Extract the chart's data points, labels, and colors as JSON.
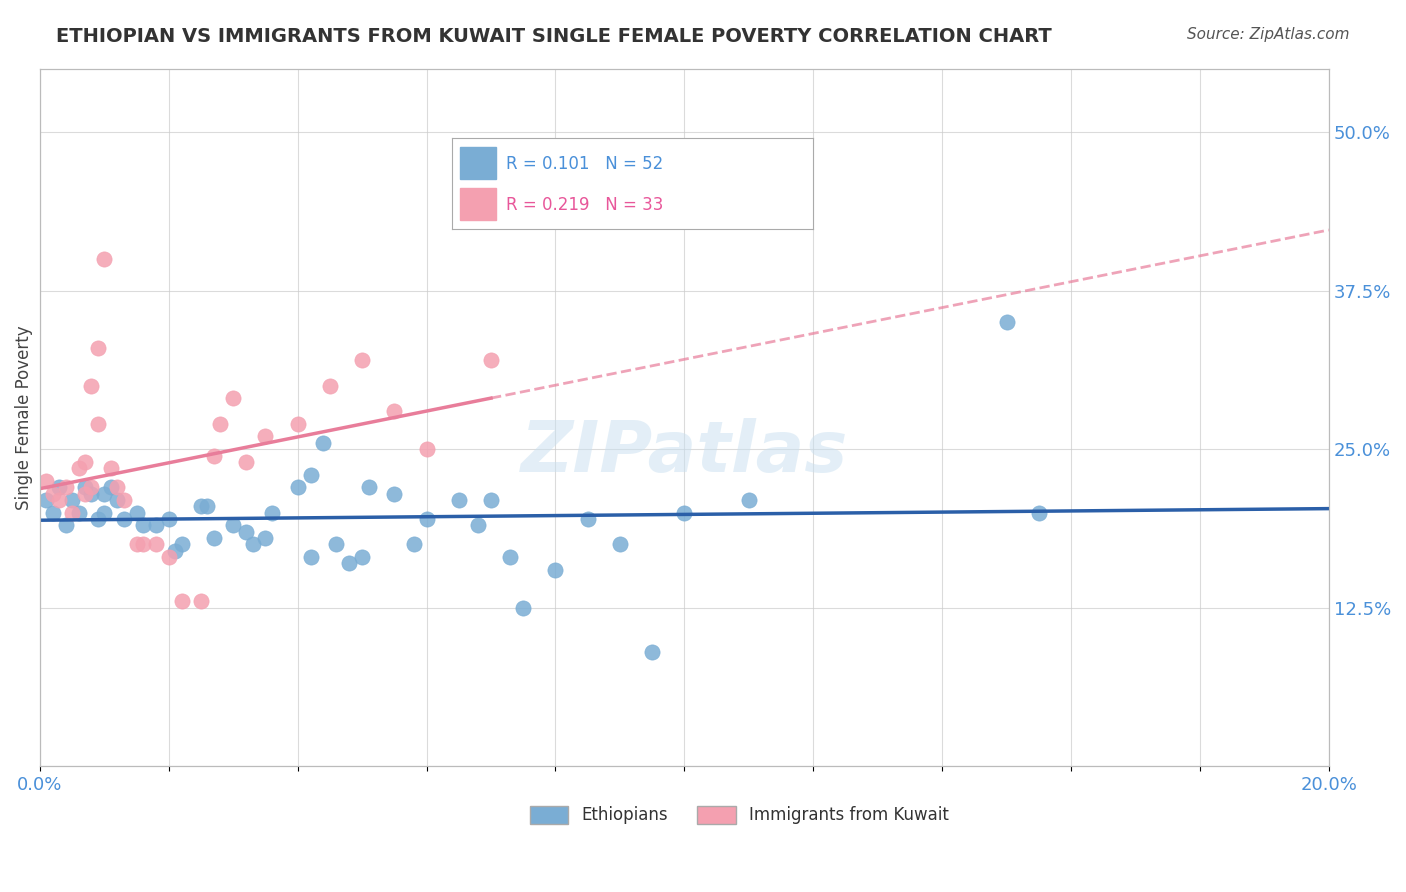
{
  "title": "ETHIOPIAN VS IMMIGRANTS FROM KUWAIT SINGLE FEMALE POVERTY CORRELATION CHART",
  "source": "Source: ZipAtlas.com",
  "ylabel": "Single Female Poverty",
  "xlabel": "",
  "xlim": [
    0.0,
    0.2
  ],
  "ylim": [
    0.0,
    0.55
  ],
  "yticks": [
    0.0,
    0.125,
    0.25,
    0.375,
    0.5
  ],
  "ytick_labels": [
    "",
    "12.5%",
    "25.0%",
    "37.5%",
    "50.0%"
  ],
  "xticks": [
    0.0,
    0.02,
    0.04,
    0.06,
    0.08,
    0.1,
    0.12,
    0.14,
    0.16,
    0.18,
    0.2
  ],
  "xtick_labels": [
    "0.0%",
    "",
    "",
    "",
    "",
    "",
    "",
    "",
    "",
    "",
    "20.0%"
  ],
  "blue_R": 0.101,
  "blue_N": 52,
  "pink_R": 0.219,
  "pink_N": 33,
  "blue_color": "#7aadd4",
  "pink_color": "#f4a0b0",
  "blue_line_color": "#2b5fa8",
  "pink_line_color": "#e87d9a",
  "blue_scatter": [
    [
      0.001,
      0.21
    ],
    [
      0.002,
      0.2
    ],
    [
      0.003,
      0.22
    ],
    [
      0.004,
      0.19
    ],
    [
      0.005,
      0.21
    ],
    [
      0.006,
      0.2
    ],
    [
      0.007,
      0.22
    ],
    [
      0.008,
      0.215
    ],
    [
      0.009,
      0.195
    ],
    [
      0.01,
      0.2
    ],
    [
      0.01,
      0.215
    ],
    [
      0.011,
      0.22
    ],
    [
      0.012,
      0.21
    ],
    [
      0.013,
      0.195
    ],
    [
      0.015,
      0.2
    ],
    [
      0.016,
      0.19
    ],
    [
      0.018,
      0.19
    ],
    [
      0.02,
      0.195
    ],
    [
      0.021,
      0.17
    ],
    [
      0.022,
      0.175
    ],
    [
      0.025,
      0.205
    ],
    [
      0.026,
      0.205
    ],
    [
      0.027,
      0.18
    ],
    [
      0.03,
      0.19
    ],
    [
      0.032,
      0.185
    ],
    [
      0.033,
      0.175
    ],
    [
      0.035,
      0.18
    ],
    [
      0.036,
      0.2
    ],
    [
      0.04,
      0.22
    ],
    [
      0.042,
      0.165
    ],
    [
      0.042,
      0.23
    ],
    [
      0.044,
      0.255
    ],
    [
      0.046,
      0.175
    ],
    [
      0.048,
      0.16
    ],
    [
      0.05,
      0.165
    ],
    [
      0.051,
      0.22
    ],
    [
      0.055,
      0.215
    ],
    [
      0.058,
      0.175
    ],
    [
      0.06,
      0.195
    ],
    [
      0.065,
      0.21
    ],
    [
      0.068,
      0.19
    ],
    [
      0.07,
      0.21
    ],
    [
      0.073,
      0.165
    ],
    [
      0.075,
      0.125
    ],
    [
      0.08,
      0.155
    ],
    [
      0.085,
      0.195
    ],
    [
      0.09,
      0.175
    ],
    [
      0.095,
      0.09
    ],
    [
      0.1,
      0.2
    ],
    [
      0.11,
      0.21
    ],
    [
      0.15,
      0.35
    ],
    [
      0.155,
      0.2
    ]
  ],
  "pink_scatter": [
    [
      0.001,
      0.225
    ],
    [
      0.002,
      0.215
    ],
    [
      0.003,
      0.21
    ],
    [
      0.004,
      0.22
    ],
    [
      0.005,
      0.2
    ],
    [
      0.006,
      0.235
    ],
    [
      0.007,
      0.24
    ],
    [
      0.007,
      0.215
    ],
    [
      0.008,
      0.22
    ],
    [
      0.008,
      0.3
    ],
    [
      0.009,
      0.27
    ],
    [
      0.009,
      0.33
    ],
    [
      0.01,
      0.4
    ],
    [
      0.011,
      0.235
    ],
    [
      0.012,
      0.22
    ],
    [
      0.013,
      0.21
    ],
    [
      0.015,
      0.175
    ],
    [
      0.016,
      0.175
    ],
    [
      0.018,
      0.175
    ],
    [
      0.02,
      0.165
    ],
    [
      0.022,
      0.13
    ],
    [
      0.025,
      0.13
    ],
    [
      0.027,
      0.245
    ],
    [
      0.028,
      0.27
    ],
    [
      0.03,
      0.29
    ],
    [
      0.032,
      0.24
    ],
    [
      0.035,
      0.26
    ],
    [
      0.04,
      0.27
    ],
    [
      0.045,
      0.3
    ],
    [
      0.05,
      0.32
    ],
    [
      0.055,
      0.28
    ],
    [
      0.06,
      0.25
    ],
    [
      0.07,
      0.32
    ]
  ],
  "watermark": "ZIPatlas",
  "background_color": "#ffffff",
  "grid_color": "#cccccc",
  "tick_label_color": "#4a90d9",
  "title_color": "#333333"
}
